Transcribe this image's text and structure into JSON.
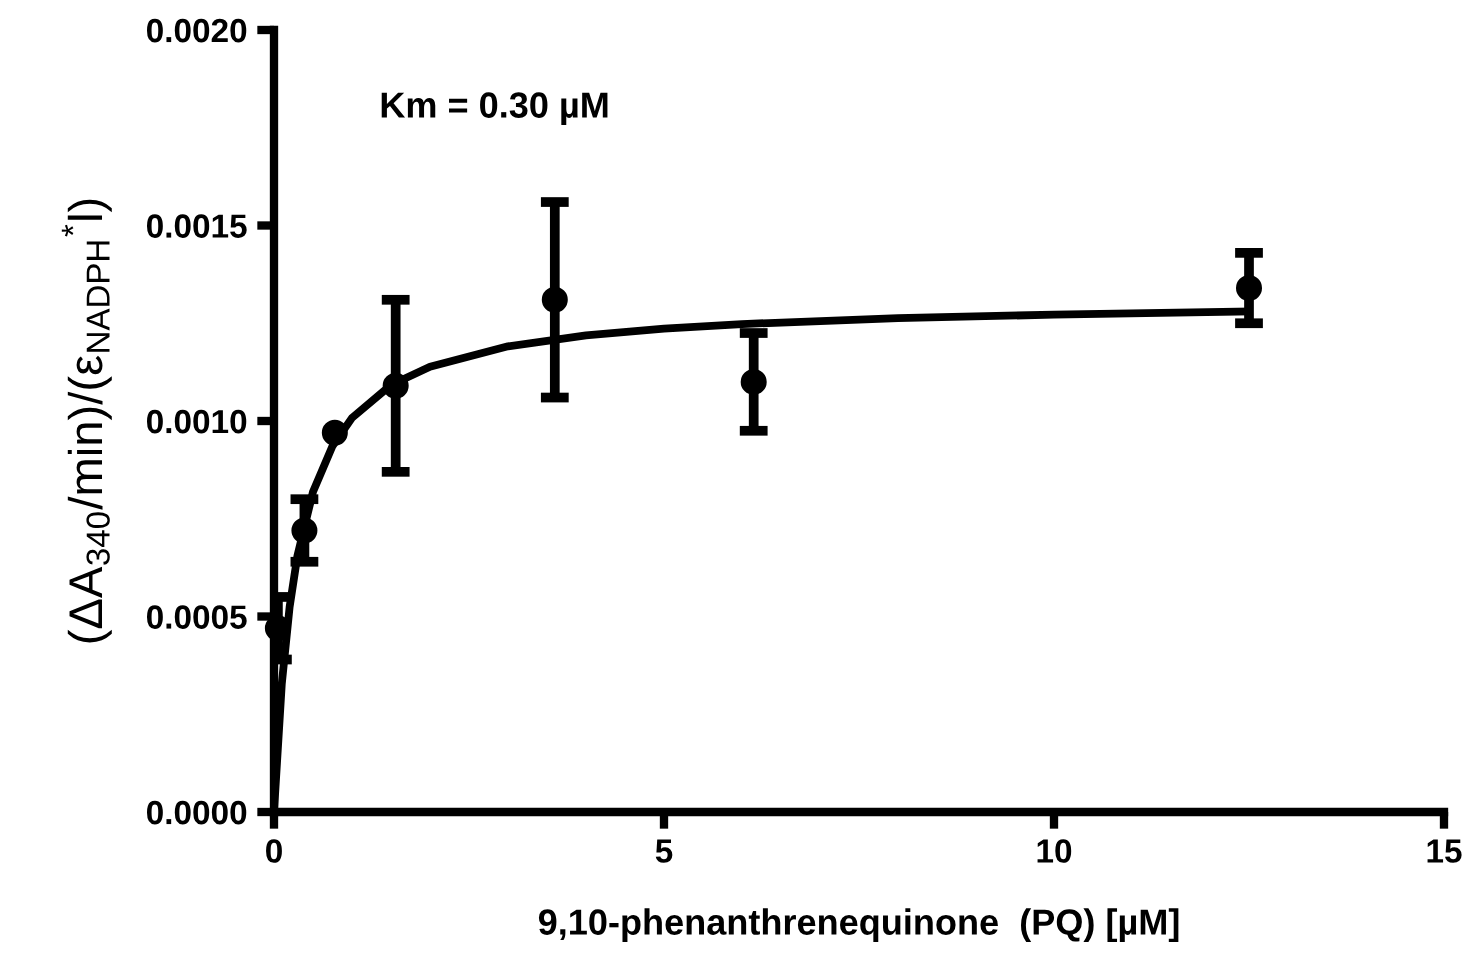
{
  "chart_data": {
    "type": "scatter",
    "xlabel": "9,10-phenanthrenequinone  (PQ) [µM]",
    "ylabel": "(ΔA$_{340}$/min)/(ε$_{NADPH}$$^{*}$l)",
    "annotations": [
      "Km = 0.30 µM"
    ],
    "xlim": [
      0,
      15
    ],
    "xticks": [
      0,
      5,
      10,
      15
    ],
    "ylim": [
      0,
      0.002
    ],
    "yticks": [
      {
        "value": 0,
        "label": "0.0000"
      },
      {
        "value": 0.0005,
        "label": "0.0005"
      },
      {
        "value": 0.001,
        "label": "0.0010"
      },
      {
        "value": 0.0015,
        "label": "0.0015"
      },
      {
        "value": 0.002,
        "label": "0.0020"
      }
    ],
    "grid": false,
    "legend": false,
    "series": [
      {
        "color": "#000000",
        "marker": "circle",
        "x": [
          0.05,
          0.39,
          0.78,
          1.56,
          3.6,
          6.15,
          12.5
        ],
        "values": [
          0.00047,
          0.00072,
          0.00097,
          0.00109,
          0.00131,
          0.0011,
          0.00134
        ],
        "errors": [
          8e-05,
          8e-05,
          null,
          0.00022,
          0.00025,
          0.000125,
          9e-05
        ]
      },
      {
        "type": "line",
        "color": "#000000",
        "line_style": "solid",
        "x": [
          0,
          0.1,
          0.2,
          0.3,
          0.5,
          0.75,
          1,
          1.5,
          2,
          3,
          4,
          5,
          6,
          8,
          10,
          12.5
        ],
        "values": [
          0,
          0.000328,
          0.000524,
          0.000655,
          0.000819,
          0.000936,
          0.001008,
          0.001092,
          0.001139,
          0.001191,
          0.001219,
          0.001236,
          0.001248,
          0.001263,
          0.001272,
          0.00128
        ]
      }
    ]
  }
}
